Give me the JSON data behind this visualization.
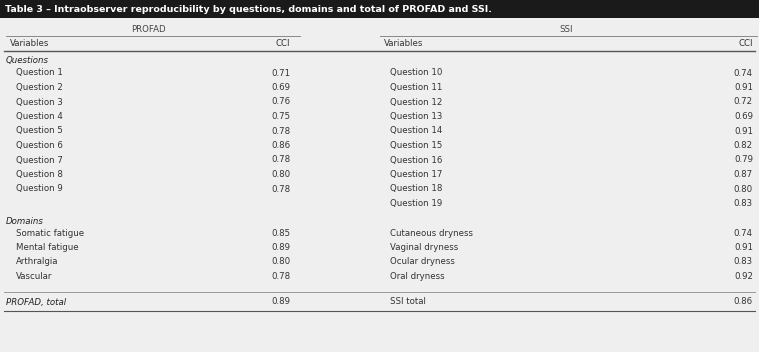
{
  "title": "Table 3 – Intraobserver reproducibility by questions, domains and total of PROFAD and SSI.",
  "title_bg": "#1a1a1a",
  "title_color": "#ffffff",
  "title_fontsize": 6.8,
  "profad_header": "PROFAD",
  "ssi_header": "SSI",
  "col_headers": [
    "Variables",
    "CCI",
    "Variables",
    "CCI"
  ],
  "section_questions": "Questions",
  "section_domains": "Domains",
  "profad_questions": [
    [
      "Question 1",
      "0.71"
    ],
    [
      "Question 2",
      "0.69"
    ],
    [
      "Question 3",
      "0.76"
    ],
    [
      "Question 4",
      "0.75"
    ],
    [
      "Question 5",
      "0.78"
    ],
    [
      "Question 6",
      "0.86"
    ],
    [
      "Question 7",
      "0.78"
    ],
    [
      "Question 8",
      "0.80"
    ],
    [
      "Question 9",
      "0.78"
    ]
  ],
  "ssi_questions": [
    [
      "Question 10",
      "0.74"
    ],
    [
      "Question 11",
      "0.91"
    ],
    [
      "Question 12",
      "0.72"
    ],
    [
      "Question 13",
      "0.69"
    ],
    [
      "Question 14",
      "0.91"
    ],
    [
      "Question 15",
      "0.82"
    ],
    [
      "Question 16",
      "0.79"
    ],
    [
      "Question 17",
      "0.87"
    ],
    [
      "Question 18",
      "0.80"
    ],
    [
      "Question 19",
      "0.83"
    ]
  ],
  "profad_domains": [
    [
      "Somatic fatigue",
      "0.85"
    ],
    [
      "Mental fatigue",
      "0.89"
    ],
    [
      "Arthralgia",
      "0.80"
    ],
    [
      "Vascular",
      "0.78"
    ]
  ],
  "ssi_domains": [
    [
      "Cutaneous dryness",
      "0.74"
    ],
    [
      "Vaginal dryness",
      "0.91"
    ],
    [
      "Ocular dryness",
      "0.83"
    ],
    [
      "Oral dryness",
      "0.92"
    ]
  ],
  "profad_total_label": "PROFAD, total",
  "profad_total_val": "0.89",
  "ssi_total_label": "SSI total",
  "ssi_total_val": "0.86",
  "font_size": 6.2,
  "header_font_size": 6.2,
  "section_font_size": 6.2,
  "bg_color": "#efefef"
}
